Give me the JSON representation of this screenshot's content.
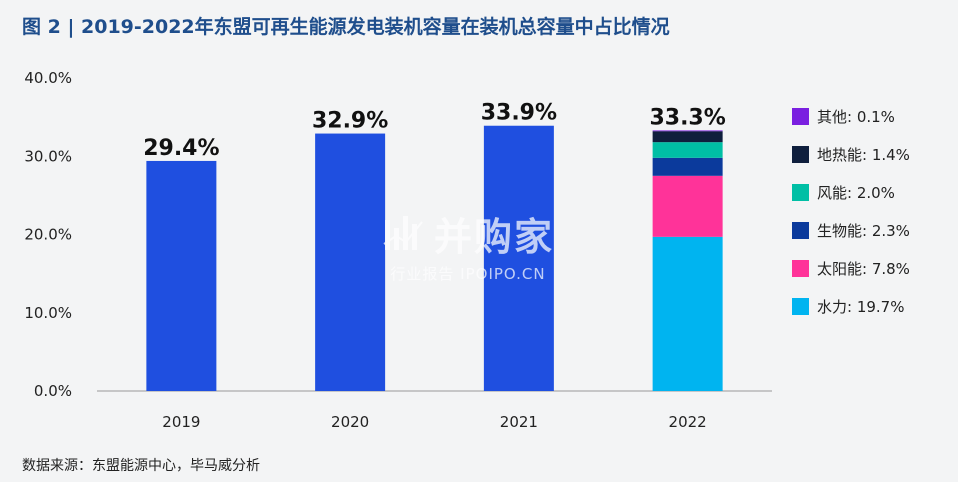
{
  "title": "图 2 | 2019-2022年东盟可再生能源发电装机容量在装机总容量中占比情况",
  "source": "数据来源：东盟能源中心，毕马威分析",
  "watermark": {
    "main": "并购家",
    "sub": "行业报告 IPOIPO.CN"
  },
  "chart_data": {
    "type": "bar",
    "categories": [
      "2019",
      "2020",
      "2021",
      "2022"
    ],
    "totals": [
      29.4,
      32.9,
      33.9,
      33.3
    ],
    "total_labels": [
      "29.4%",
      "32.9%",
      "33.9%",
      "33.3%"
    ],
    "ylim": [
      0,
      40
    ],
    "yticks": [
      0,
      10,
      20,
      30,
      40
    ],
    "ytick_labels": [
      "0.0%",
      "10.0%",
      "20.0%",
      "30.0%",
      "40.0%"
    ],
    "total_color": "#1f4fe0",
    "stacked_category": "2022",
    "stack": [
      {
        "name": "水力",
        "value": 19.7,
        "label": "水力: 19.7%",
        "color": "#00b4f0"
      },
      {
        "name": "太阳能",
        "value": 7.8,
        "label": "太阳能: 7.8%",
        "color": "#ff3399"
      },
      {
        "name": "生物能",
        "value": 2.3,
        "label": "生物能: 2.3%",
        "color": "#0b3a9c"
      },
      {
        "name": "风能",
        "value": 2.0,
        "label": "风能: 2.0%",
        "color": "#00bfa5"
      },
      {
        "name": "地热能",
        "value": 1.4,
        "label": "地热能: 1.4%",
        "color": "#0f1f3d"
      },
      {
        "name": "其他",
        "value": 0.1,
        "label": "其他: 0.1%",
        "color": "#7a1fe0"
      }
    ],
    "legend": {
      "placement": "right"
    },
    "grid": false
  }
}
